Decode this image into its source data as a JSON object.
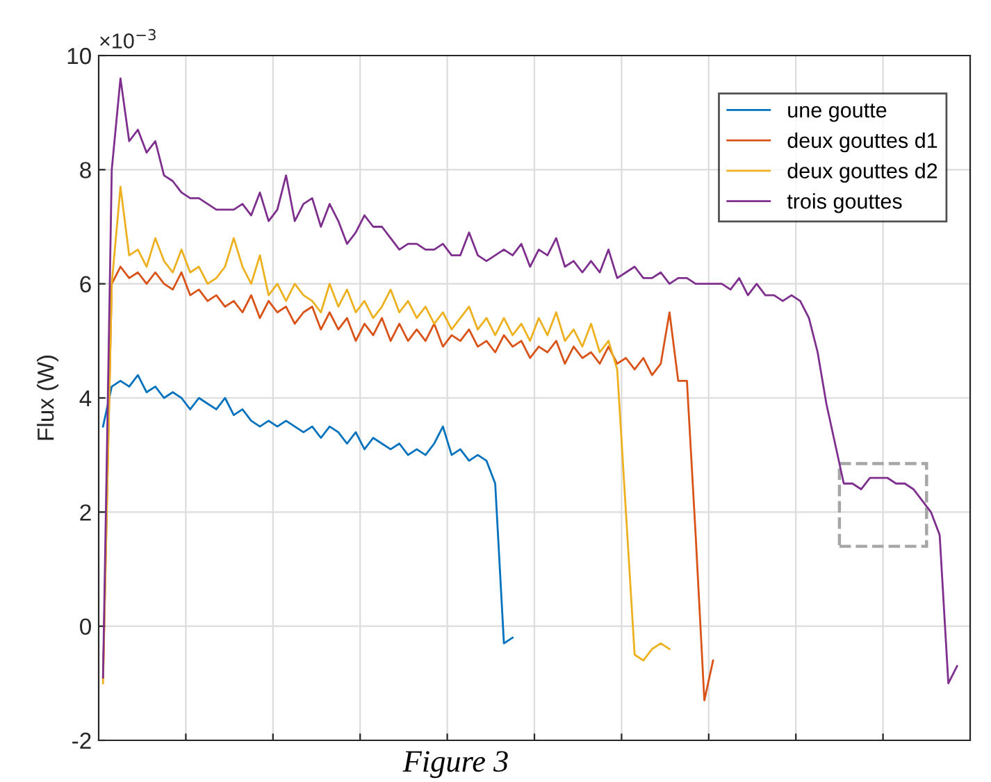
{
  "chart_data": {
    "type": "line",
    "ylabel": "Flux (W)",
    "annotations": [
      "×10$^{−3}$",
      "Figure 3"
    ],
    "categories": [
      null,
      null,
      null,
      null,
      null,
      null,
      null,
      null,
      null,
      null,
      null,
      null,
      null,
      null,
      null,
      null,
      null,
      null,
      null,
      null,
      null,
      null,
      null,
      null,
      null,
      null,
      null,
      null,
      null,
      null,
      null,
      null,
      null,
      null,
      null,
      null,
      null,
      null,
      null,
      null,
      null,
      null,
      null,
      null,
      null,
      null,
      null,
      null,
      null,
      null,
      null,
      null,
      null,
      null,
      null,
      null,
      null,
      null,
      null,
      null,
      null,
      null,
      null,
      null,
      null,
      null,
      null,
      null,
      null,
      null,
      null,
      null,
      null,
      null,
      null,
      null,
      null,
      null,
      null,
      null,
      null,
      null,
      null,
      null,
      null,
      null,
      null,
      null,
      null,
      null,
      null,
      null,
      null,
      null,
      null,
      null,
      null,
      null,
      null,
      null
    ],
    "series": [
      {
        "name": "une goutte",
        "color": "#0072bd",
        "values": [
          3.5,
          4.2,
          4.3,
          4.2,
          4.4,
          4.1,
          4.2,
          4.0,
          4.1,
          4.0,
          3.8,
          4.0,
          3.9,
          3.8,
          4.0,
          3.7,
          3.8,
          3.6,
          3.5,
          3.6,
          3.5,
          3.6,
          3.5,
          3.4,
          3.5,
          3.3,
          3.5,
          3.4,
          3.2,
          3.4,
          3.1,
          3.3,
          3.2,
          3.1,
          3.2,
          3.0,
          3.1,
          3.0,
          3.2,
          3.5,
          3.0,
          3.1,
          2.9,
          3.0,
          2.9,
          2.5,
          -0.3,
          -0.2,
          null,
          null,
          null,
          null,
          null,
          null,
          null,
          null,
          null,
          null,
          null,
          null,
          null,
          null,
          null,
          null,
          null,
          null,
          null,
          null,
          null,
          null,
          null,
          null,
          null,
          null,
          null,
          null,
          null,
          null,
          null,
          null,
          null,
          null,
          null,
          null,
          null,
          null,
          null,
          null,
          null,
          null,
          null,
          null,
          null,
          null,
          null,
          null,
          null,
          null,
          null,
          null
        ]
      },
      {
        "name": "deux gouttes d1",
        "color": "#d95319",
        "values": [
          -0.9,
          6.0,
          6.3,
          6.1,
          6.2,
          6.0,
          6.2,
          6.0,
          5.9,
          6.2,
          5.8,
          5.9,
          5.7,
          5.8,
          5.6,
          5.7,
          5.5,
          5.8,
          5.4,
          5.7,
          5.5,
          5.6,
          5.3,
          5.5,
          5.6,
          5.2,
          5.5,
          5.2,
          5.4,
          5.0,
          5.3,
          5.1,
          5.4,
          5.0,
          5.3,
          5.0,
          5.2,
          5.0,
          5.3,
          4.9,
          5.1,
          5.0,
          5.2,
          4.9,
          5.0,
          4.8,
          5.1,
          4.9,
          5.0,
          4.7,
          4.9,
          4.8,
          5.0,
          4.6,
          4.9,
          4.7,
          4.8,
          4.6,
          4.9,
          4.6,
          4.7,
          4.5,
          4.7,
          4.4,
          4.6,
          5.5,
          4.3,
          4.3,
          1.6,
          -1.3,
          -0.6,
          null,
          null,
          null,
          null,
          null,
          null,
          null,
          null,
          null,
          null,
          null,
          null,
          null,
          null,
          null,
          null,
          null,
          null,
          null,
          null,
          null,
          null,
          null,
          null,
          null,
          null,
          null,
          null,
          null
        ]
      },
      {
        "name": "deux gouttes d2",
        "color": "#edb120",
        "values": [
          -1.0,
          6.0,
          7.7,
          6.5,
          6.6,
          6.3,
          6.8,
          6.4,
          6.2,
          6.6,
          6.2,
          6.3,
          6.0,
          6.1,
          6.3,
          6.8,
          6.3,
          6.0,
          6.5,
          5.8,
          6.0,
          5.7,
          6.0,
          5.8,
          5.7,
          5.5,
          6.0,
          5.6,
          5.9,
          5.5,
          5.7,
          5.4,
          5.6,
          5.9,
          5.5,
          5.7,
          5.4,
          5.6,
          5.3,
          5.5,
          5.2,
          5.4,
          5.6,
          5.2,
          5.4,
          5.1,
          5.4,
          5.1,
          5.3,
          5.0,
          5.4,
          5.1,
          5.5,
          5.0,
          5.2,
          4.9,
          5.3,
          4.8,
          5.0,
          4.5,
          2.0,
          -0.5,
          -0.6,
          -0.4,
          -0.3,
          -0.4,
          null,
          null,
          null,
          null,
          null,
          null,
          null,
          null,
          null,
          null,
          null,
          null,
          null,
          null,
          null,
          null,
          null,
          null,
          null,
          null,
          null,
          null,
          null,
          null,
          null,
          null,
          null,
          null,
          null,
          null,
          null,
          null,
          null,
          null
        ]
      },
      {
        "name": "trois gouttes",
        "color": "#7e2f8e",
        "values": [
          -0.9,
          8.0,
          9.6,
          8.5,
          8.7,
          8.3,
          8.5,
          7.9,
          7.8,
          7.6,
          7.5,
          7.5,
          7.4,
          7.3,
          7.3,
          7.3,
          7.4,
          7.2,
          7.6,
          7.1,
          7.3,
          7.9,
          7.1,
          7.4,
          7.5,
          7.0,
          7.4,
          7.1,
          6.7,
          6.9,
          7.2,
          7.0,
          7.0,
          6.8,
          6.6,
          6.7,
          6.7,
          6.6,
          6.6,
          6.7,
          6.5,
          6.5,
          6.9,
          6.5,
          6.4,
          6.5,
          6.6,
          6.5,
          6.7,
          6.3,
          6.6,
          6.5,
          6.8,
          6.3,
          6.4,
          6.2,
          6.4,
          6.2,
          6.6,
          6.1,
          6.2,
          6.3,
          6.1,
          6.1,
          6.2,
          6.0,
          6.1,
          6.1,
          6.0,
          6.0,
          6.0,
          6.0,
          5.9,
          6.1,
          5.8,
          6.0,
          5.8,
          5.8,
          5.7,
          5.8,
          5.7,
          5.4,
          4.8,
          3.9,
          3.2,
          2.5,
          2.5,
          2.4,
          2.6,
          2.6,
          2.6,
          2.5,
          2.5,
          2.4,
          2.2,
          2.0,
          1.6,
          -1.0,
          -0.7,
          null
        ]
      }
    ],
    "ylim": [
      -2,
      10
    ],
    "yticks": [
      {
        "value": -2,
        "label": "-2"
      },
      0,
      2,
      4,
      6,
      8,
      10
    ],
    "grid": true,
    "legend": "top right"
  }
}
